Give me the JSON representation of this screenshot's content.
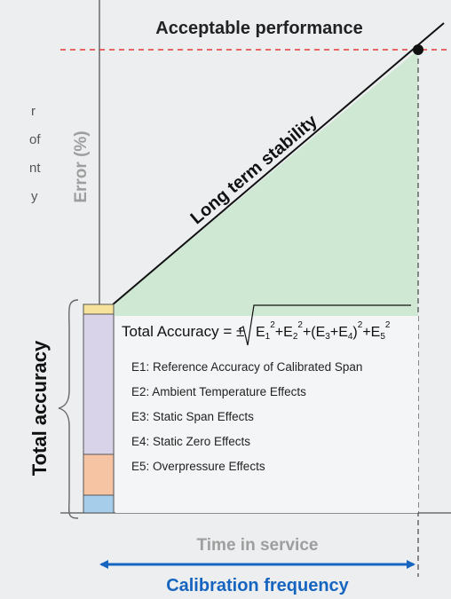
{
  "header": {
    "title": "Acceptable performance"
  },
  "axes": {
    "y_label": "Error (%)",
    "x_label": "Time in service"
  },
  "stability": {
    "label": "Long term stability"
  },
  "total_accuracy": {
    "label": "Total accuracy"
  },
  "formula": {
    "lead": "Total Accuracy = ±",
    "terms": [
      "E",
      "1",
      "2",
      "+E",
      "2",
      "2",
      "+(E",
      "3",
      "+E",
      "4",
      ")",
      "2",
      "+E",
      "5",
      "2"
    ]
  },
  "legend": {
    "items": [
      "E1: Reference Accuracy  of Calibrated Span",
      "E2: Ambient Temperature Effects",
      "E3: Static Span Effects",
      "E4: Static Zero Effects",
      "E5: Overpressure Effects"
    ]
  },
  "calibration": {
    "label": "Calibration frequency"
  },
  "cropped_text": {
    "lines": [
      "r",
      "of",
      "nt",
      "y"
    ]
  },
  "colors": {
    "green_fill": "#cfe8d4",
    "red_dash": "#e53935",
    "blue": "#1565c0",
    "bar_e1": "#d9d3ea",
    "bar_e4": "#f7c4a3",
    "bar_e5": "#a6cdea",
    "bar_top": "#f6e29a"
  }
}
